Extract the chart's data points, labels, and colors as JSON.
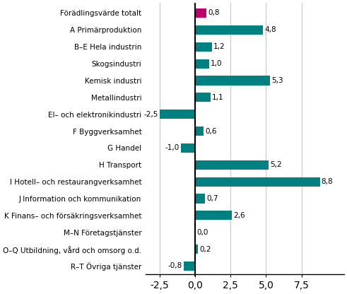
{
  "categories": [
    "Förädlingsvärde totalt",
    "A Primärproduktion",
    "B–E Hela industrin",
    "Skogsindustri",
    "Kemisk industri",
    "Metallindustri",
    "El– och elektronikindustri",
    "F Byggverksamhet",
    "G Handel",
    "H Transport",
    "I Hotell– och restaurangverksamhet",
    "J Information och kommunikation",
    "K Finans– och försäkringsverksamhet",
    "M–N Företagstjänster",
    "O–Q Utbildning, vård och omsorg o.d.",
    "R–T Övriga tjänster"
  ],
  "values": [
    0.8,
    4.8,
    1.2,
    1.0,
    5.3,
    1.1,
    -2.5,
    0.6,
    -1.0,
    5.2,
    8.8,
    0.7,
    2.6,
    0.0,
    0.2,
    -0.8
  ],
  "bar_colors": [
    "#c0006a",
    "#008080",
    "#008080",
    "#008080",
    "#008080",
    "#008080",
    "#008080",
    "#008080",
    "#008080",
    "#008080",
    "#008080",
    "#008080",
    "#008080",
    "#008080",
    "#008080",
    "#008080"
  ],
  "xlim": [
    -3.5,
    10.5
  ],
  "xticks": [
    -2.5,
    0.0,
    2.5,
    5.0,
    7.5
  ],
  "xtick_labels": [
    "-2,5",
    "0,0",
    "2,5",
    "5,0",
    "7,5"
  ],
  "background_color": "#ffffff",
  "grid_color": "#c8c8c8",
  "label_fontsize": 7.5,
  "value_fontsize": 7.5,
  "bar_height": 0.55
}
